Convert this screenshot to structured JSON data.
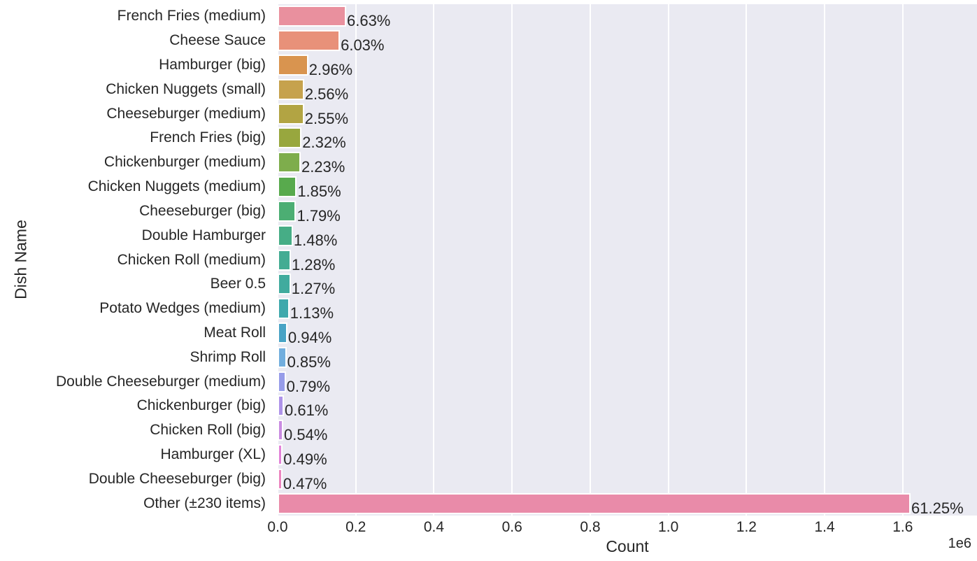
{
  "chart_data": {
    "type": "bar",
    "orientation": "horizontal",
    "title": "",
    "xlabel": "Count",
    "ylabel": "Dish Name",
    "x_multiplier_label": "1e6",
    "xlim": [
      0,
      1790000
    ],
    "grid": true,
    "legend": false,
    "plot_bg_color": "#eaeaf2",
    "grid_color": "#ffffff",
    "xtick_values": [
      0,
      200000,
      400000,
      600000,
      800000,
      1000000,
      1200000,
      1400000,
      1600000
    ],
    "xtick_labels": [
      "0.0",
      "0.2",
      "0.4",
      "0.6",
      "0.8",
      "1.0",
      "1.2",
      "1.4",
      "1.6"
    ],
    "items": [
      {
        "label": "French Fries (medium)",
        "pct_label": "6.63%",
        "count_est": 175400,
        "color": "#e9909e"
      },
      {
        "label": "Cheese Sauce",
        "pct_label": "6.03%",
        "count_est": 159500,
        "color": "#e89179"
      },
      {
        "label": "Hamburger (big)",
        "pct_label": "2.96%",
        "count_est": 78300,
        "color": "#d9944f"
      },
      {
        "label": "Chicken Nuggets (small)",
        "pct_label": "2.56%",
        "count_est": 67700,
        "color": "#c6a24d"
      },
      {
        "label": "Cheeseburger (medium)",
        "pct_label": "2.55%",
        "count_est": 67500,
        "color": "#b2a443"
      },
      {
        "label": "French Fries (big)",
        "pct_label": "2.32%",
        "count_est": 61400,
        "color": "#98a73e"
      },
      {
        "label": "Chickenburger (medium)",
        "pct_label": "2.23%",
        "count_est": 59000,
        "color": "#7ead4c"
      },
      {
        "label": "Chicken Nuggets (medium)",
        "pct_label": "1.85%",
        "count_est": 48900,
        "color": "#58aa4d"
      },
      {
        "label": "Cheeseburger (big)",
        "pct_label": "1.79%",
        "count_est": 47400,
        "color": "#4cae73"
      },
      {
        "label": "Double Hamburger",
        "pct_label": "1.48%",
        "count_est": 39200,
        "color": "#46ad86"
      },
      {
        "label": "Chicken Roll (medium)",
        "pct_label": "1.28%",
        "count_est": 33900,
        "color": "#43ac93"
      },
      {
        "label": "Beer 0.5",
        "pct_label": "1.27%",
        "count_est": 33600,
        "color": "#41ab9e"
      },
      {
        "label": "Potato Wedges (medium)",
        "pct_label": "1.13%",
        "count_est": 29900,
        "color": "#3fa9ac"
      },
      {
        "label": "Meat Roll",
        "pct_label": "0.94%",
        "count_est": 24900,
        "color": "#48a3c5"
      },
      {
        "label": "Shrimp Roll",
        "pct_label": "0.85%",
        "count_est": 22500,
        "color": "#72aede"
      },
      {
        "label": "Double Cheeseburger (medium)",
        "pct_label": "0.79%",
        "count_est": 20900,
        "color": "#979ce9"
      },
      {
        "label": "Chickenburger (big)",
        "pct_label": "0.61%",
        "count_est": 16100,
        "color": "#ae93e9"
      },
      {
        "label": "Chicken Roll (big)",
        "pct_label": "0.54%",
        "count_est": 14300,
        "color": "#c98ce1"
      },
      {
        "label": "Hamburger (XL)",
        "pct_label": "0.49%",
        "count_est": 13000,
        "color": "#e283d8"
      },
      {
        "label": "Double Cheeseburger (big)",
        "pct_label": "0.47%",
        "count_est": 12400,
        "color": "#ec86c0"
      },
      {
        "label": "Other (±230 items)",
        "pct_label": "61.25%",
        "count_est": 1620000,
        "color": "#e98ba9"
      }
    ]
  }
}
